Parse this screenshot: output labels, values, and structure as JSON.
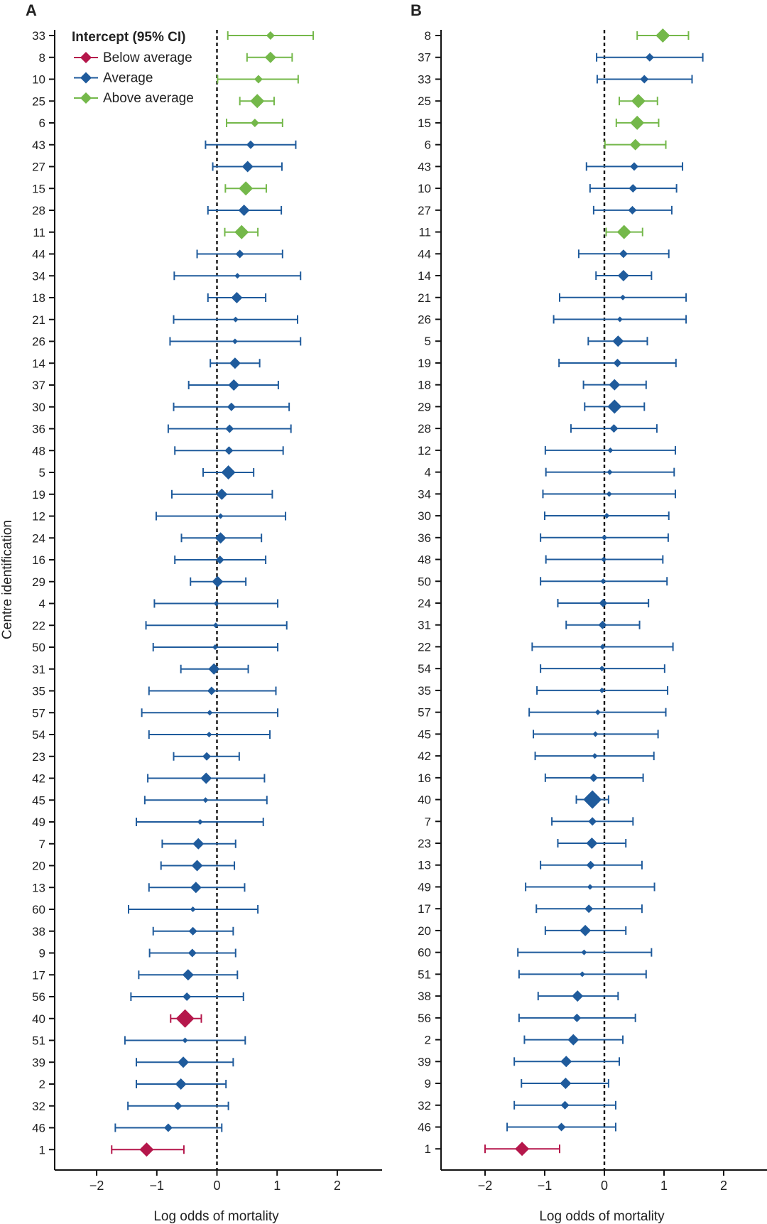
{
  "chart_data": [
    {
      "type": "forest",
      "panel_label": "A",
      "ylabel": "Centre identification",
      "xlabel": "Log odds of mortality",
      "xlim": [
        -2.7,
        2.75
      ],
      "xticks": [
        -2,
        -1,
        0,
        1,
        2
      ],
      "reference_line_x": 0,
      "legend": {
        "title": "Intercept (95% CI)",
        "entries": [
          {
            "key": "below",
            "label": "Below average"
          },
          {
            "key": "average",
            "label": "Average"
          },
          {
            "key": "above",
            "label": "Above average"
          }
        ]
      },
      "centres": [
        {
          "id": "33",
          "est": 0.89,
          "lo": 0.18,
          "hi": 1.6,
          "cat": "above",
          "w": 1
        },
        {
          "id": "8",
          "est": 0.89,
          "lo": 0.5,
          "hi": 1.25,
          "cat": "above",
          "w": 2
        },
        {
          "id": "10",
          "est": 0.69,
          "lo": 0.01,
          "hi": 1.35,
          "cat": "above",
          "w": 1
        },
        {
          "id": "25",
          "est": 0.67,
          "lo": 0.38,
          "hi": 0.95,
          "cat": "above",
          "w": 3
        },
        {
          "id": "6",
          "est": 0.63,
          "lo": 0.16,
          "hi": 1.09,
          "cat": "above",
          "w": 1
        },
        {
          "id": "43",
          "est": 0.56,
          "lo": -0.19,
          "hi": 1.31,
          "cat": "average",
          "w": 1
        },
        {
          "id": "27",
          "est": 0.51,
          "lo": -0.07,
          "hi": 1.08,
          "cat": "average",
          "w": 2
        },
        {
          "id": "15",
          "est": 0.48,
          "lo": 0.14,
          "hi": 0.82,
          "cat": "above",
          "w": 3
        },
        {
          "id": "28",
          "est": 0.45,
          "lo": -0.15,
          "hi": 1.07,
          "cat": "average",
          "w": 2
        },
        {
          "id": "11",
          "est": 0.41,
          "lo": 0.13,
          "hi": 0.68,
          "cat": "above",
          "w": 3
        },
        {
          "id": "44",
          "est": 0.38,
          "lo": -0.33,
          "hi": 1.09,
          "cat": "average",
          "w": 1
        },
        {
          "id": "34",
          "est": 0.34,
          "lo": -0.71,
          "hi": 1.39,
          "cat": "average",
          "w": 0
        },
        {
          "id": "18",
          "est": 0.33,
          "lo": -0.15,
          "hi": 0.81,
          "cat": "average",
          "w": 2
        },
        {
          "id": "21",
          "est": 0.31,
          "lo": -0.72,
          "hi": 1.34,
          "cat": "average",
          "w": 0
        },
        {
          "id": "26",
          "est": 0.3,
          "lo": -0.78,
          "hi": 1.39,
          "cat": "average",
          "w": 0
        },
        {
          "id": "14",
          "est": 0.3,
          "lo": -0.11,
          "hi": 0.71,
          "cat": "average",
          "w": 2
        },
        {
          "id": "37",
          "est": 0.28,
          "lo": -0.47,
          "hi": 1.02,
          "cat": "average",
          "w": 2
        },
        {
          "id": "30",
          "est": 0.24,
          "lo": -0.72,
          "hi": 1.2,
          "cat": "average",
          "w": 1
        },
        {
          "id": "36",
          "est": 0.21,
          "lo": -0.81,
          "hi": 1.23,
          "cat": "average",
          "w": 1
        },
        {
          "id": "48",
          "est": 0.2,
          "lo": -0.7,
          "hi": 1.1,
          "cat": "average",
          "w": 1
        },
        {
          "id": "5",
          "est": 0.19,
          "lo": -0.23,
          "hi": 0.61,
          "cat": "average",
          "w": 3
        },
        {
          "id": "19",
          "est": 0.08,
          "lo": -0.75,
          "hi": 0.92,
          "cat": "average",
          "w": 2
        },
        {
          "id": "12",
          "est": 0.06,
          "lo": -1.01,
          "hi": 1.14,
          "cat": "average",
          "w": 0
        },
        {
          "id": "24",
          "est": 0.06,
          "lo": -0.59,
          "hi": 0.74,
          "cat": "average",
          "w": 2
        },
        {
          "id": "16",
          "est": 0.05,
          "lo": -0.7,
          "hi": 0.81,
          "cat": "average",
          "w": 1
        },
        {
          "id": "29",
          "est": 0.01,
          "lo": -0.44,
          "hi": 0.48,
          "cat": "average",
          "w": 2
        },
        {
          "id": "4",
          "est": -0.01,
          "lo": -1.04,
          "hi": 1.01,
          "cat": "average",
          "w": 0
        },
        {
          "id": "22",
          "est": -0.02,
          "lo": -1.18,
          "hi": 1.16,
          "cat": "average",
          "w": 0
        },
        {
          "id": "50",
          "est": -0.03,
          "lo": -1.06,
          "hi": 1.01,
          "cat": "average",
          "w": 0
        },
        {
          "id": "31",
          "est": -0.05,
          "lo": -0.6,
          "hi": 0.52,
          "cat": "average",
          "w": 2
        },
        {
          "id": "35",
          "est": -0.09,
          "lo": -1.13,
          "hi": 0.98,
          "cat": "average",
          "w": 1
        },
        {
          "id": "57",
          "est": -0.12,
          "lo": -1.25,
          "hi": 1.01,
          "cat": "average",
          "w": 0
        },
        {
          "id": "54",
          "est": -0.13,
          "lo": -1.13,
          "hi": 0.88,
          "cat": "average",
          "w": 0
        },
        {
          "id": "23",
          "est": -0.17,
          "lo": -0.72,
          "hi": 0.37,
          "cat": "average",
          "w": 1
        },
        {
          "id": "42",
          "est": -0.18,
          "lo": -1.15,
          "hi": 0.79,
          "cat": "average",
          "w": 2
        },
        {
          "id": "45",
          "est": -0.19,
          "lo": -1.2,
          "hi": 0.83,
          "cat": "average",
          "w": 0
        },
        {
          "id": "49",
          "est": -0.28,
          "lo": -1.34,
          "hi": 0.77,
          "cat": "average",
          "w": 0
        },
        {
          "id": "7",
          "est": -0.31,
          "lo": -0.91,
          "hi": 0.31,
          "cat": "average",
          "w": 2
        },
        {
          "id": "20",
          "est": -0.33,
          "lo": -0.93,
          "hi": 0.29,
          "cat": "average",
          "w": 2
        },
        {
          "id": "13",
          "est": -0.35,
          "lo": -1.13,
          "hi": 0.46,
          "cat": "average",
          "w": 2
        },
        {
          "id": "60",
          "est": -0.4,
          "lo": -1.47,
          "hi": 0.68,
          "cat": "average",
          "w": 0
        },
        {
          "id": "38",
          "est": -0.4,
          "lo": -1.06,
          "hi": 0.27,
          "cat": "average",
          "w": 1
        },
        {
          "id": "9",
          "est": -0.41,
          "lo": -1.12,
          "hi": 0.31,
          "cat": "average",
          "w": 1
        },
        {
          "id": "17",
          "est": -0.48,
          "lo": -1.3,
          "hi": 0.34,
          "cat": "average",
          "w": 2
        },
        {
          "id": "56",
          "est": -0.5,
          "lo": -1.43,
          "hi": 0.44,
          "cat": "average",
          "w": 1
        },
        {
          "id": "40",
          "est": -0.53,
          "lo": -0.77,
          "hi": -0.26,
          "cat": "below",
          "w": 4
        },
        {
          "id": "51",
          "est": -0.53,
          "lo": -1.53,
          "hi": 0.47,
          "cat": "average",
          "w": 0
        },
        {
          "id": "39",
          "est": -0.56,
          "lo": -1.34,
          "hi": 0.27,
          "cat": "average",
          "w": 2
        },
        {
          "id": "2",
          "est": -0.6,
          "lo": -1.34,
          "hi": 0.15,
          "cat": "average",
          "w": 2
        },
        {
          "id": "32",
          "est": -0.65,
          "lo": -1.48,
          "hi": 0.19,
          "cat": "average",
          "w": 1
        },
        {
          "id": "46",
          "est": -0.81,
          "lo": -1.69,
          "hi": 0.08,
          "cat": "average",
          "w": 1
        },
        {
          "id": "1",
          "est": -1.17,
          "lo": -1.75,
          "hi": -0.55,
          "cat": "below",
          "w": 3
        }
      ]
    },
    {
      "type": "forest",
      "panel_label": "B",
      "ylabel": "",
      "xlabel": "Log odds of mortality",
      "xlim": [
        -2.7,
        2.75
      ],
      "xticks": [
        -2,
        -1,
        0,
        1,
        2
      ],
      "reference_line_x": 0,
      "centres": [
        {
          "id": "8",
          "est": 0.98,
          "lo": 0.55,
          "hi": 1.41,
          "cat": "above",
          "w": 3
        },
        {
          "id": "37",
          "est": 0.76,
          "lo": -0.13,
          "hi": 1.65,
          "cat": "average",
          "w": 1
        },
        {
          "id": "33",
          "est": 0.67,
          "lo": -0.12,
          "hi": 1.47,
          "cat": "average",
          "w": 1
        },
        {
          "id": "25",
          "est": 0.57,
          "lo": 0.25,
          "hi": 0.89,
          "cat": "above",
          "w": 3
        },
        {
          "id": "15",
          "est": 0.55,
          "lo": 0.2,
          "hi": 0.91,
          "cat": "above",
          "w": 3
        },
        {
          "id": "6",
          "est": 0.52,
          "lo": 0.01,
          "hi": 1.03,
          "cat": "above",
          "w": 2
        },
        {
          "id": "43",
          "est": 0.5,
          "lo": -0.3,
          "hi": 1.31,
          "cat": "average",
          "w": 1
        },
        {
          "id": "10",
          "est": 0.48,
          "lo": -0.24,
          "hi": 1.21,
          "cat": "average",
          "w": 1
        },
        {
          "id": "27",
          "est": 0.47,
          "lo": -0.18,
          "hi": 1.13,
          "cat": "average",
          "w": 1
        },
        {
          "id": "11",
          "est": 0.33,
          "lo": 0.03,
          "hi": 0.64,
          "cat": "above",
          "w": 3
        },
        {
          "id": "44",
          "est": 0.32,
          "lo": -0.43,
          "hi": 1.08,
          "cat": "average",
          "w": 1
        },
        {
          "id": "14",
          "est": 0.32,
          "lo": -0.14,
          "hi": 0.79,
          "cat": "average",
          "w": 2
        },
        {
          "id": "21",
          "est": 0.31,
          "lo": -0.75,
          "hi": 1.37,
          "cat": "average",
          "w": 0
        },
        {
          "id": "26",
          "est": 0.26,
          "lo": -0.85,
          "hi": 1.37,
          "cat": "average",
          "w": 0
        },
        {
          "id": "5",
          "est": 0.23,
          "lo": -0.27,
          "hi": 0.72,
          "cat": "average",
          "w": 2
        },
        {
          "id": "19",
          "est": 0.22,
          "lo": -0.76,
          "hi": 1.2,
          "cat": "average",
          "w": 1
        },
        {
          "id": "18",
          "est": 0.17,
          "lo": -0.35,
          "hi": 0.7,
          "cat": "average",
          "w": 2
        },
        {
          "id": "29",
          "est": 0.17,
          "lo": -0.33,
          "hi": 0.67,
          "cat": "average",
          "w": 3
        },
        {
          "id": "28",
          "est": 0.16,
          "lo": -0.56,
          "hi": 0.88,
          "cat": "average",
          "w": 1
        },
        {
          "id": "12",
          "est": 0.1,
          "lo": -0.99,
          "hi": 1.19,
          "cat": "average",
          "w": 0
        },
        {
          "id": "4",
          "est": 0.09,
          "lo": -0.98,
          "hi": 1.17,
          "cat": "average",
          "w": 0
        },
        {
          "id": "34",
          "est": 0.08,
          "lo": -1.03,
          "hi": 1.19,
          "cat": "average",
          "w": 0
        },
        {
          "id": "30",
          "est": 0.04,
          "lo": -1.0,
          "hi": 1.08,
          "cat": "average",
          "w": 0
        },
        {
          "id": "36",
          "est": 0.0,
          "lo": -1.07,
          "hi": 1.07,
          "cat": "average",
          "w": 0
        },
        {
          "id": "48",
          "est": -0.01,
          "lo": -0.98,
          "hi": 0.98,
          "cat": "average",
          "w": 0
        },
        {
          "id": "50",
          "est": -0.02,
          "lo": -1.07,
          "hi": 1.05,
          "cat": "average",
          "w": 0
        },
        {
          "id": "24",
          "est": -0.02,
          "lo": -0.78,
          "hi": 0.74,
          "cat": "average",
          "w": 1
        },
        {
          "id": "31",
          "est": -0.03,
          "lo": -0.64,
          "hi": 0.59,
          "cat": "average",
          "w": 1
        },
        {
          "id": "22",
          "est": -0.03,
          "lo": -1.21,
          "hi": 1.15,
          "cat": "average",
          "w": 0
        },
        {
          "id": "54",
          "est": -0.04,
          "lo": -1.07,
          "hi": 1.01,
          "cat": "average",
          "w": 0
        },
        {
          "id": "35",
          "est": -0.04,
          "lo": -1.13,
          "hi": 1.06,
          "cat": "average",
          "w": 0
        },
        {
          "id": "57",
          "est": -0.11,
          "lo": -1.26,
          "hi": 1.03,
          "cat": "average",
          "w": 0
        },
        {
          "id": "45",
          "est": -0.15,
          "lo": -1.19,
          "hi": 0.9,
          "cat": "average",
          "w": 0
        },
        {
          "id": "42",
          "est": -0.16,
          "lo": -1.16,
          "hi": 0.83,
          "cat": "average",
          "w": 0
        },
        {
          "id": "16",
          "est": -0.18,
          "lo": -0.99,
          "hi": 0.65,
          "cat": "average",
          "w": 1
        },
        {
          "id": "40",
          "est": -0.2,
          "lo": -0.47,
          "hi": 0.07,
          "cat": "average",
          "w": 4
        },
        {
          "id": "7",
          "est": -0.2,
          "lo": -0.88,
          "hi": 0.48,
          "cat": "average",
          "w": 1
        },
        {
          "id": "23",
          "est": -0.21,
          "lo": -0.78,
          "hi": 0.36,
          "cat": "average",
          "w": 2
        },
        {
          "id": "13",
          "est": -0.23,
          "lo": -1.07,
          "hi": 0.63,
          "cat": "average",
          "w": 1
        },
        {
          "id": "49",
          "est": -0.24,
          "lo": -1.32,
          "hi": 0.84,
          "cat": "average",
          "w": 0
        },
        {
          "id": "17",
          "est": -0.26,
          "lo": -1.14,
          "hi": 0.63,
          "cat": "average",
          "w": 1
        },
        {
          "id": "20",
          "est": -0.32,
          "lo": -0.99,
          "hi": 0.36,
          "cat": "average",
          "w": 2
        },
        {
          "id": "60",
          "est": -0.34,
          "lo": -1.45,
          "hi": 0.79,
          "cat": "average",
          "w": 0
        },
        {
          "id": "51",
          "est": -0.37,
          "lo": -1.43,
          "hi": 0.7,
          "cat": "average",
          "w": 0
        },
        {
          "id": "38",
          "est": -0.45,
          "lo": -1.11,
          "hi": 0.23,
          "cat": "average",
          "w": 2
        },
        {
          "id": "56",
          "est": -0.46,
          "lo": -1.43,
          "hi": 0.52,
          "cat": "average",
          "w": 1
        },
        {
          "id": "2",
          "est": -0.52,
          "lo": -1.34,
          "hi": 0.31,
          "cat": "average",
          "w": 2
        },
        {
          "id": "39",
          "est": -0.64,
          "lo": -1.51,
          "hi": 0.25,
          "cat": "average",
          "w": 2
        },
        {
          "id": "9",
          "est": -0.65,
          "lo": -1.39,
          "hi": 0.07,
          "cat": "average",
          "w": 2
        },
        {
          "id": "32",
          "est": -0.66,
          "lo": -1.51,
          "hi": 0.19,
          "cat": "average",
          "w": 1
        },
        {
          "id": "46",
          "est": -0.72,
          "lo": -1.63,
          "hi": 0.19,
          "cat": "average",
          "w": 1
        },
        {
          "id": "1",
          "est": -1.38,
          "lo": -2.0,
          "hi": -0.75,
          "cat": "below",
          "w": 3
        }
      ]
    }
  ],
  "colors": {
    "below": "#b5174b",
    "average": "#1f5b9c",
    "above": "#74b84a",
    "axis": "#111111",
    "text": "#222222"
  }
}
